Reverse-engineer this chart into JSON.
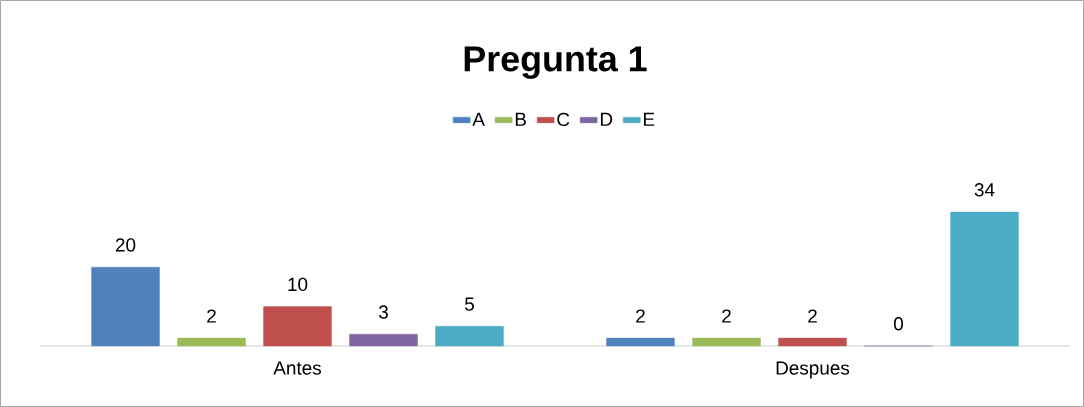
{
  "chart_data": {
    "type": "bar",
    "title": "Pregunta 1",
    "categories": [
      "Antes",
      "Despues"
    ],
    "series": [
      {
        "name": "A",
        "color": "#4f81bd",
        "values": [
          20,
          2
        ]
      },
      {
        "name": "B",
        "color": "#9bbb59",
        "values": [
          2,
          2
        ]
      },
      {
        "name": "C",
        "color": "#c0504d",
        "values": [
          10,
          2
        ]
      },
      {
        "name": "D",
        "color": "#8064a2",
        "values": [
          3,
          0
        ]
      },
      {
        "name": "E",
        "color": "#4bacc6",
        "values": [
          5,
          34
        ]
      }
    ],
    "data_labels": true,
    "legend": "top"
  }
}
